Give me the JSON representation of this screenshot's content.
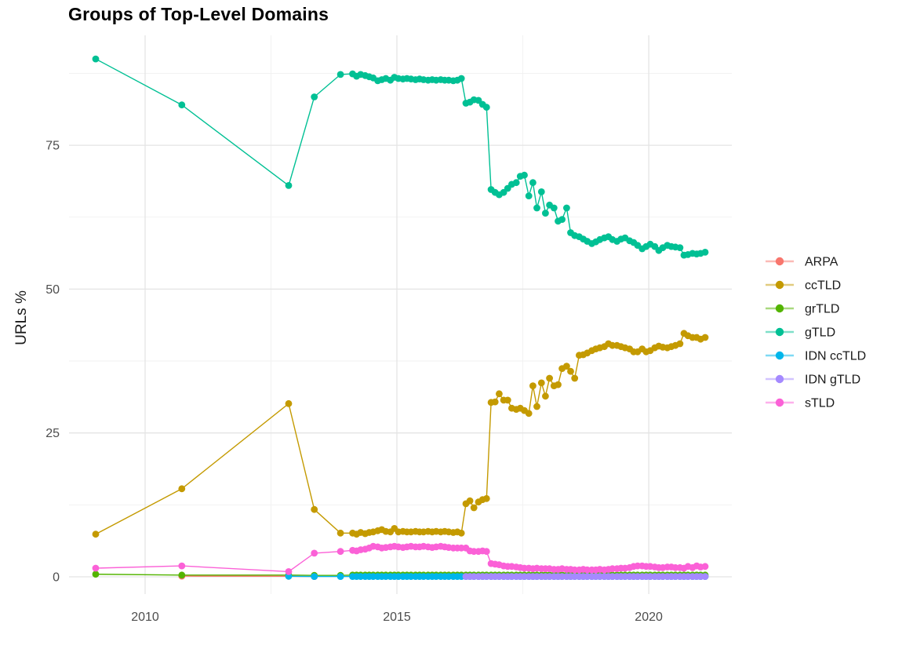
{
  "chart_data": {
    "type": "line",
    "title": "Groups of Top-Level Domains",
    "xlabel": "",
    "ylabel": "URLs %",
    "grid": true,
    "legend_position": "right",
    "xlim": [
      2008.49,
      2021.65
    ],
    "ylim": [
      -3,
      94.1
    ],
    "x_ticks": {
      "major": [
        2010,
        2015,
        2020
      ],
      "labels": [
        "2010",
        "2015",
        "2020"
      ],
      "minor": [
        2012.5,
        2017.5
      ]
    },
    "y_ticks": {
      "major": [
        0,
        25,
        50,
        75
      ],
      "labels": [
        "0",
        "25",
        "50",
        "75"
      ],
      "minor": [
        12.5,
        37.5,
        62.5,
        87.5
      ]
    },
    "x_values": [
      2009.02,
      2010.73,
      2012.85,
      2013.36,
      2013.88,
      2014.12,
      2014.2,
      2014.28,
      2014.37,
      2014.45,
      2014.53,
      2014.62,
      2014.7,
      2014.78,
      2014.87,
      2014.95,
      2015.03,
      2015.12,
      2015.2,
      2015.28,
      2015.37,
      2015.45,
      2015.53,
      2015.62,
      2015.7,
      2015.78,
      2015.87,
      2015.95,
      2016.03,
      2016.12,
      2016.2,
      2016.28,
      2016.37,
      2016.45,
      2016.53,
      2016.62,
      2016.7,
      2016.78,
      2016.87,
      2016.95,
      2017.03,
      2017.12,
      2017.2,
      2017.28,
      2017.37,
      2017.45,
      2017.53,
      2017.62,
      2017.7,
      2017.78,
      2017.87,
      2017.95,
      2018.03,
      2018.12,
      2018.2,
      2018.28,
      2018.37,
      2018.45,
      2018.53,
      2018.62,
      2018.7,
      2018.78,
      2018.87,
      2018.95,
      2019.03,
      2019.12,
      2019.2,
      2019.28,
      2019.37,
      2019.45,
      2019.53,
      2019.62,
      2019.7,
      2019.78,
      2019.87,
      2019.95,
      2020.03,
      2020.12,
      2020.2,
      2020.28,
      2020.37,
      2020.45,
      2020.53,
      2020.62,
      2020.7,
      2020.78,
      2020.87,
      2020.95,
      2021.03,
      2021.12
    ],
    "series": [
      {
        "name": "ARPA",
        "color": "#F8766D",
        "start_index": 1,
        "values": [
          0.12,
          0.1,
          0.06
        ]
      },
      {
        "name": "ccTLD",
        "color": "#C49A00",
        "start_index": 0,
        "values": [
          7.4,
          15.3,
          30.1,
          11.7,
          7.6,
          7.6,
          7.4,
          7.7,
          7.5,
          7.7,
          7.8,
          8.0,
          8.2,
          7.9,
          7.8,
          8.4,
          7.8,
          7.9,
          7.8,
          7.8,
          7.9,
          7.8,
          7.8,
          7.9,
          7.8,
          7.9,
          7.8,
          7.9,
          7.8,
          7.7,
          7.8,
          7.6,
          12.7,
          13.2,
          12.0,
          13.0,
          13.4,
          13.6,
          30.3,
          30.4,
          31.8,
          30.7,
          30.7,
          29.3,
          29.1,
          29.3,
          28.9,
          28.4,
          33.2,
          29.6,
          33.7,
          31.4,
          34.5,
          33.2,
          33.4,
          36.2,
          36.6,
          35.7,
          34.5,
          38.5,
          38.6,
          38.9,
          39.3,
          39.6,
          39.8,
          40.0,
          40.5,
          40.2,
          40.2,
          40.0,
          39.8,
          39.6,
          39.1,
          39.1,
          39.6,
          39.1,
          39.3,
          39.8,
          40.1,
          39.9,
          39.8,
          40.0,
          40.2,
          40.5,
          42.3,
          41.9,
          41.6,
          41.6,
          41.3,
          41.6
        ]
      },
      {
        "name": "grTLD",
        "color": "#53B400",
        "start_index": 0,
        "values": [
          0.45,
          0.3,
          0.3,
          0.25,
          0.25,
          0.3,
          0.3,
          0.3,
          0.3,
          0.3,
          0.3,
          0.3,
          0.3,
          0.3,
          0.3,
          0.3,
          0.3,
          0.3,
          0.3,
          0.3,
          0.3,
          0.3,
          0.3,
          0.3,
          0.3,
          0.3,
          0.3,
          0.3,
          0.3,
          0.3,
          0.3,
          0.3,
          0.3,
          0.3,
          0.3,
          0.3,
          0.3,
          0.3,
          0.3,
          0.3,
          0.3,
          0.3,
          0.3,
          0.3,
          0.3,
          0.3,
          0.3,
          0.3,
          0.3,
          0.3,
          0.3,
          0.3,
          0.3,
          0.3,
          0.3,
          0.3,
          0.3,
          0.3,
          0.3,
          0.3,
          0.3,
          0.3,
          0.3,
          0.3,
          0.3,
          0.3,
          0.3,
          0.3,
          0.3,
          0.3,
          0.3,
          0.3,
          0.3,
          0.3,
          0.3,
          0.3,
          0.3,
          0.3,
          0.3,
          0.3,
          0.3,
          0.3,
          0.3,
          0.3,
          0.3,
          0.3,
          0.3,
          0.3,
          0.3,
          0.3
        ]
      },
      {
        "name": "gTLD",
        "color": "#00C094",
        "start_index": 0,
        "values": [
          90.0,
          82.0,
          68.0,
          83.4,
          87.3,
          87.4,
          87.0,
          87.3,
          87.1,
          86.9,
          86.7,
          86.2,
          86.4,
          86.6,
          86.3,
          86.8,
          86.6,
          86.5,
          86.6,
          86.5,
          86.4,
          86.5,
          86.4,
          86.3,
          86.4,
          86.3,
          86.4,
          86.3,
          86.3,
          86.2,
          86.3,
          86.6,
          82.3,
          82.5,
          82.9,
          82.8,
          82.1,
          81.6,
          67.3,
          66.8,
          66.4,
          66.8,
          67.5,
          68.2,
          68.5,
          69.6,
          69.8,
          66.2,
          68.5,
          64.1,
          66.9,
          63.2,
          64.6,
          64.1,
          61.8,
          62.1,
          64.1,
          59.8,
          59.3,
          59.1,
          58.7,
          58.3,
          57.9,
          58.2,
          58.6,
          58.9,
          59.1,
          58.6,
          58.3,
          58.7,
          58.9,
          58.4,
          58.1,
          57.6,
          57.0,
          57.4,
          57.8,
          57.4,
          56.7,
          57.2,
          57.6,
          57.4,
          57.3,
          57.2,
          55.9,
          56.0,
          56.2,
          56.1,
          56.2,
          56.4
        ]
      },
      {
        "name": "IDN ccTLD",
        "color": "#00B6EB",
        "start_index": 2,
        "values": [
          0.1,
          0.05,
          0.05,
          0.05,
          0.05,
          0.05,
          0.05,
          0.05,
          0.05,
          0.05,
          0.05,
          0.05,
          0.05,
          0.05,
          0.05,
          0.05,
          0.05,
          0.05,
          0.05,
          0.05,
          0.05,
          0.05,
          0.05,
          0.05,
          0.05,
          0.05,
          0.05,
          0.05,
          0.05,
          0.05,
          0.05,
          0.05,
          0.05,
          0.05,
          0.05,
          0.05,
          0.05,
          0.05,
          0.05,
          0.05,
          0.05,
          0.05,
          0.05,
          0.05,
          0.05,
          0.05,
          0.05,
          0.05,
          0.05,
          0.05,
          0.05,
          0.05,
          0.05,
          0.05,
          0.05,
          0.05,
          0.05,
          0.05,
          0.05,
          0.05,
          0.05,
          0.05,
          0.05,
          0.05,
          0.05,
          0.05,
          0.05,
          0.05,
          0.05,
          0.05,
          0.05,
          0.05,
          0.05,
          0.05,
          0.05,
          0.05,
          0.05,
          0.05,
          0.05,
          0.05,
          0.05,
          0.05,
          0.05,
          0.05,
          0.05,
          0.05,
          0.05,
          0.05
        ]
      },
      {
        "name": "IDN gTLD",
        "color": "#A58AFF",
        "start_index": 32,
        "values": [
          0.05,
          0.05,
          0.05,
          0.05,
          0.05,
          0.05,
          0.05,
          0.05,
          0.05,
          0.05,
          0.05,
          0.05,
          0.05,
          0.05,
          0.05,
          0.05,
          0.05,
          0.05,
          0.05,
          0.05,
          0.05,
          0.05,
          0.05,
          0.05,
          0.05,
          0.05,
          0.05,
          0.05,
          0.05,
          0.05,
          0.05,
          0.05,
          0.05,
          0.05,
          0.05,
          0.05,
          0.05,
          0.05,
          0.05,
          0.05,
          0.05,
          0.05,
          0.05,
          0.05,
          0.05,
          0.05,
          0.05,
          0.05,
          0.05,
          0.05,
          0.05,
          0.05,
          0.05,
          0.05,
          0.05,
          0.05,
          0.05,
          0.05
        ]
      },
      {
        "name": "sTLD",
        "color": "#FB61D7",
        "start_index": 0,
        "values": [
          1.5,
          1.9,
          0.9,
          4.1,
          4.4,
          4.6,
          4.5,
          4.7,
          4.8,
          5.0,
          5.3,
          5.2,
          5.0,
          5.1,
          5.2,
          5.3,
          5.2,
          5.1,
          5.2,
          5.3,
          5.2,
          5.2,
          5.3,
          5.2,
          5.1,
          5.2,
          5.3,
          5.2,
          5.1,
          5.0,
          5.0,
          5.0,
          5.0,
          4.5,
          4.4,
          4.4,
          4.5,
          4.4,
          2.3,
          2.2,
          2.1,
          1.9,
          1.8,
          1.8,
          1.7,
          1.6,
          1.5,
          1.5,
          1.4,
          1.5,
          1.4,
          1.4,
          1.4,
          1.3,
          1.3,
          1.4,
          1.3,
          1.3,
          1.2,
          1.2,
          1.3,
          1.2,
          1.2,
          1.2,
          1.3,
          1.2,
          1.3,
          1.4,
          1.4,
          1.5,
          1.5,
          1.6,
          1.8,
          1.9,
          1.9,
          1.8,
          1.8,
          1.7,
          1.6,
          1.6,
          1.7,
          1.7,
          1.6,
          1.6,
          1.5,
          1.8,
          1.6,
          1.9,
          1.7,
          1.8
        ]
      }
    ]
  }
}
